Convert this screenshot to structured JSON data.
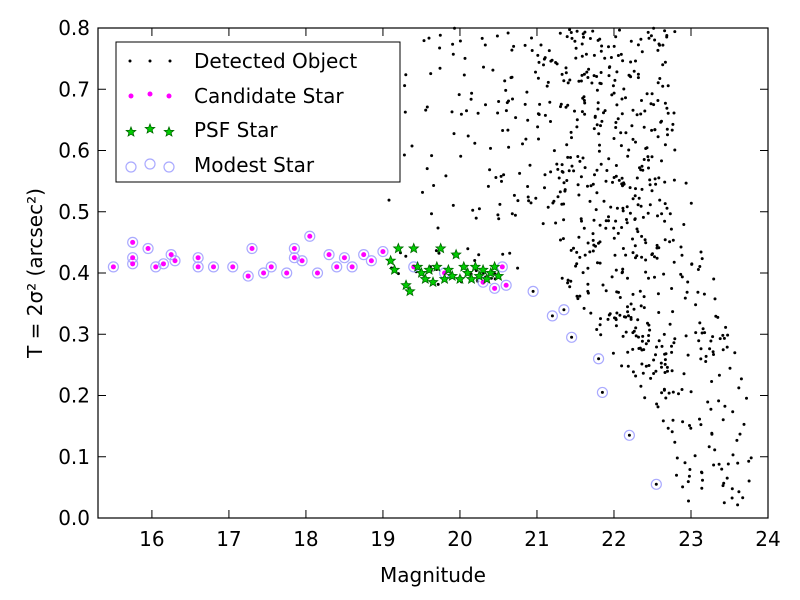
{
  "chart_data": {
    "type": "scatter",
    "xlabel": "Magnitude",
    "ylabel": "T = 2σ² (arcsec²)",
    "xlim": [
      15.3,
      24.0
    ],
    "ylim": [
      0.0,
      0.8
    ],
    "xticks": [
      16,
      17,
      18,
      19,
      20,
      21,
      22,
      23,
      24
    ],
    "yticks": [
      0.0,
      0.1,
      0.2,
      0.3,
      0.4,
      0.5,
      0.6,
      0.7,
      0.8
    ],
    "legend": {
      "position": "top-left",
      "entries": [
        {
          "label": "Detected Object",
          "marker": "dot",
          "color": "#000000"
        },
        {
          "label": "Candidate Star",
          "marker": "circle",
          "color": "#ff00ff"
        },
        {
          "label": "PSF Star",
          "marker": "star",
          "color": "#00aa00"
        },
        {
          "label": "Modest Star",
          "marker": "open-circle",
          "color": "#aaaaff"
        }
      ]
    },
    "series": [
      {
        "name": "Modest Star",
        "points": [
          [
            15.5,
            0.41
          ],
          [
            15.75,
            0.45
          ],
          [
            15.75,
            0.425
          ],
          [
            15.75,
            0.415
          ],
          [
            15.95,
            0.44
          ],
          [
            16.05,
            0.41
          ],
          [
            16.15,
            0.415
          ],
          [
            16.25,
            0.43
          ],
          [
            16.3,
            0.42
          ],
          [
            16.6,
            0.425
          ],
          [
            16.6,
            0.41
          ],
          [
            16.8,
            0.41
          ],
          [
            17.05,
            0.41
          ],
          [
            17.25,
            0.395
          ],
          [
            17.3,
            0.44
          ],
          [
            17.45,
            0.4
          ],
          [
            17.55,
            0.41
          ],
          [
            17.75,
            0.4
          ],
          [
            17.85,
            0.44
          ],
          [
            17.85,
            0.425
          ],
          [
            17.95,
            0.42
          ],
          [
            18.05,
            0.46
          ],
          [
            18.15,
            0.4
          ],
          [
            18.3,
            0.43
          ],
          [
            18.4,
            0.41
          ],
          [
            18.5,
            0.425
          ],
          [
            18.6,
            0.41
          ],
          [
            18.75,
            0.43
          ],
          [
            18.85,
            0.42
          ],
          [
            19.0,
            0.435
          ],
          [
            19.4,
            0.41
          ],
          [
            19.8,
            0.4
          ],
          [
            20.3,
            0.385
          ],
          [
            20.45,
            0.375
          ],
          [
            20.55,
            0.41
          ],
          [
            20.6,
            0.38
          ],
          [
            20.95,
            0.37
          ],
          [
            21.2,
            0.33
          ],
          [
            21.35,
            0.34
          ],
          [
            21.45,
            0.295
          ],
          [
            21.8,
            0.26
          ],
          [
            21.85,
            0.205
          ],
          [
            22.2,
            0.135
          ],
          [
            22.55,
            0.055
          ]
        ]
      },
      {
        "name": "Candidate Star",
        "points": [
          [
            15.5,
            0.41
          ],
          [
            15.75,
            0.45
          ],
          [
            15.75,
            0.425
          ],
          [
            15.75,
            0.415
          ],
          [
            15.95,
            0.44
          ],
          [
            16.05,
            0.41
          ],
          [
            16.15,
            0.415
          ],
          [
            16.25,
            0.43
          ],
          [
            16.3,
            0.42
          ],
          [
            16.6,
            0.425
          ],
          [
            16.6,
            0.41
          ],
          [
            16.8,
            0.41
          ],
          [
            17.05,
            0.41
          ],
          [
            17.25,
            0.395
          ],
          [
            17.3,
            0.44
          ],
          [
            17.45,
            0.4
          ],
          [
            17.55,
            0.41
          ],
          [
            17.75,
            0.4
          ],
          [
            17.85,
            0.44
          ],
          [
            17.85,
            0.425
          ],
          [
            17.95,
            0.42
          ],
          [
            18.05,
            0.46
          ],
          [
            18.15,
            0.4
          ],
          [
            18.3,
            0.43
          ],
          [
            18.4,
            0.41
          ],
          [
            18.5,
            0.425
          ],
          [
            18.6,
            0.41
          ],
          [
            18.75,
            0.43
          ],
          [
            18.85,
            0.42
          ],
          [
            19.0,
            0.435
          ],
          [
            19.4,
            0.41
          ],
          [
            19.8,
            0.4
          ],
          [
            20.3,
            0.385
          ],
          [
            20.45,
            0.375
          ],
          [
            20.55,
            0.41
          ],
          [
            20.6,
            0.38
          ]
        ]
      },
      {
        "name": "PSF Star",
        "points": [
          [
            19.1,
            0.42
          ],
          [
            19.15,
            0.405
          ],
          [
            19.2,
            0.44
          ],
          [
            19.3,
            0.38
          ],
          [
            19.35,
            0.37
          ],
          [
            19.4,
            0.44
          ],
          [
            19.45,
            0.41
          ],
          [
            19.5,
            0.4
          ],
          [
            19.55,
            0.39
          ],
          [
            19.6,
            0.405
          ],
          [
            19.65,
            0.385
          ],
          [
            19.7,
            0.41
          ],
          [
            19.75,
            0.44
          ],
          [
            19.8,
            0.39
          ],
          [
            19.85,
            0.405
          ],
          [
            19.9,
            0.395
          ],
          [
            19.95,
            0.43
          ],
          [
            20.0,
            0.39
          ],
          [
            20.05,
            0.41
          ],
          [
            20.1,
            0.4
          ],
          [
            20.15,
            0.39
          ],
          [
            20.2,
            0.41
          ],
          [
            20.25,
            0.395
          ],
          [
            20.3,
            0.405
          ],
          [
            20.35,
            0.39
          ],
          [
            20.4,
            0.4
          ],
          [
            20.45,
            0.41
          ],
          [
            20.5,
            0.395
          ]
        ]
      },
      {
        "name": "Detected Object",
        "generated_x_range": [
          19.0,
          23.8
        ],
        "generated_y_range": [
          0.02,
          0.8
        ],
        "count": 800
      }
    ]
  }
}
